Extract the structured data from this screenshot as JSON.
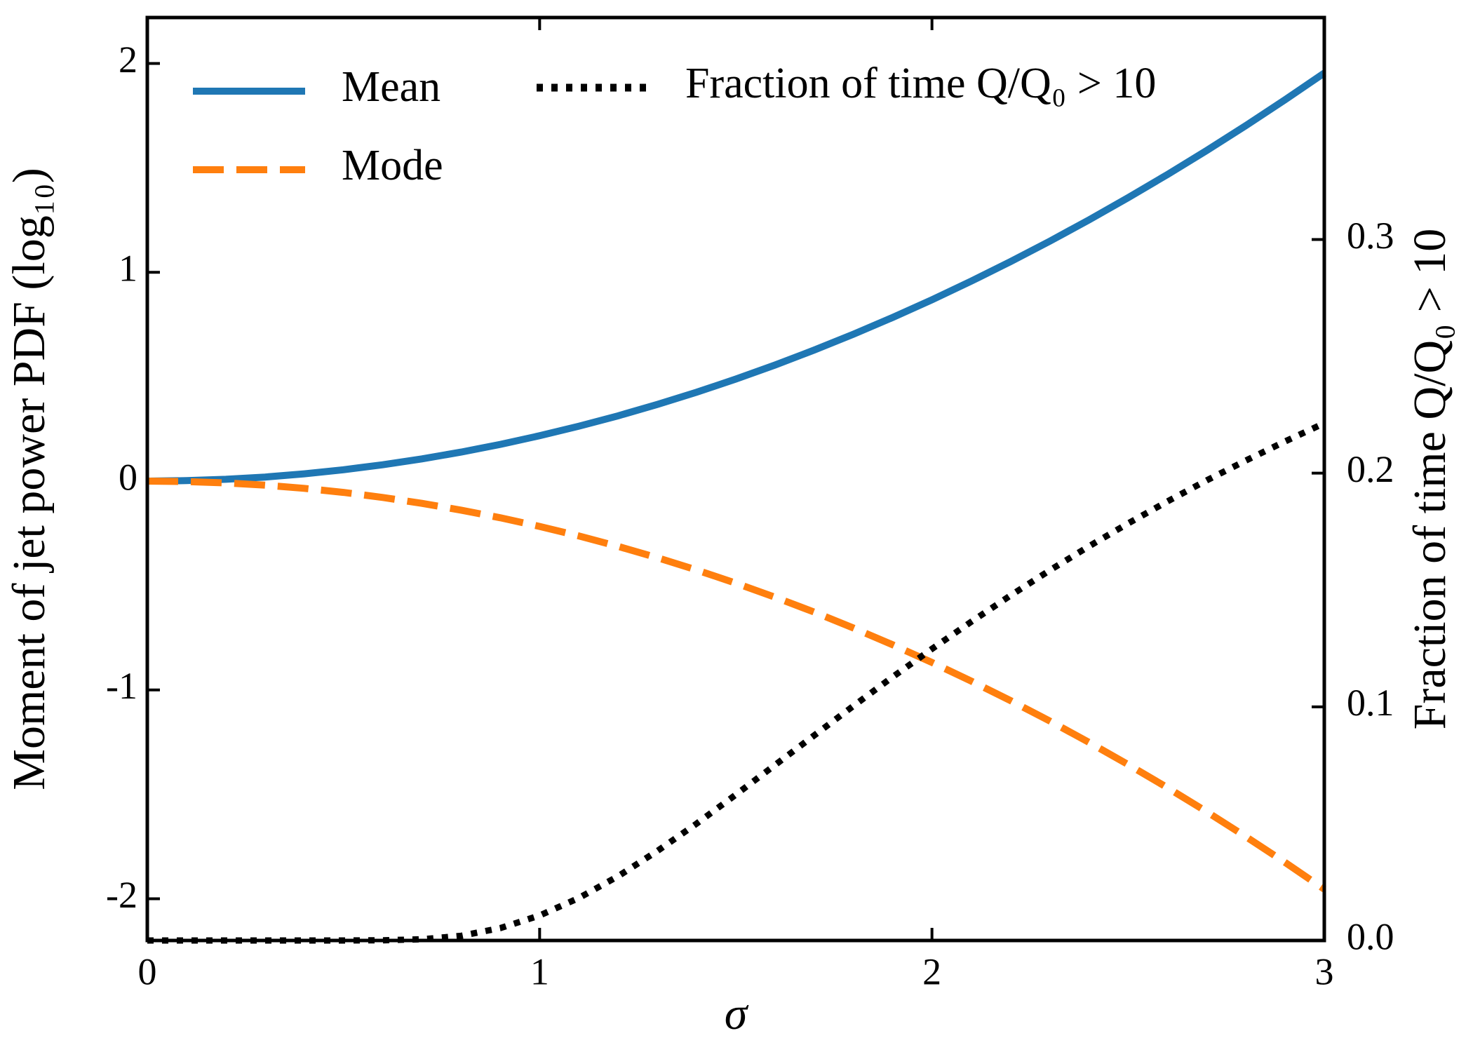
{
  "chart_data": {
    "type": "line",
    "xlabel": "σ",
    "ylabel": "Moment of jet power PDF (log₁₀)",
    "y2label": "Fraction of time Q/Q₀ > 10",
    "x": [
      0,
      0.1,
      0.2,
      0.3,
      0.4,
      0.5,
      0.6,
      0.7,
      0.8,
      0.9,
      1.0,
      1.1,
      1.2,
      1.3,
      1.4,
      1.5,
      1.6,
      1.7,
      1.8,
      1.9,
      2.0,
      2.1,
      2.2,
      2.3,
      2.4,
      2.5,
      2.6,
      2.7,
      2.8,
      2.9,
      3.0
    ],
    "series": [
      {
        "name": "Mean",
        "color": "#1f77b4",
        "style": "solid",
        "values": [
          0,
          0.0022,
          0.0087,
          0.0195,
          0.0347,
          0.0543,
          0.0782,
          0.1064,
          0.139,
          0.1759,
          0.2171,
          0.2628,
          0.3127,
          0.367,
          0.4256,
          0.4886,
          0.5559,
          0.6276,
          0.7036,
          0.7839,
          0.8686,
          0.9576,
          1.051,
          1.1487,
          1.2508,
          1.3572,
          1.468,
          1.583,
          1.7025,
          1.8263,
          1.9544
        ]
      },
      {
        "name": "Mode",
        "color": "#ff7f0e",
        "style": "dashed",
        "values": [
          0,
          -0.0022,
          -0.0087,
          -0.0195,
          -0.0347,
          -0.0543,
          -0.0782,
          -0.1064,
          -0.139,
          -0.1759,
          -0.2171,
          -0.2628,
          -0.3127,
          -0.367,
          -0.4256,
          -0.4886,
          -0.5559,
          -0.6276,
          -0.7036,
          -0.7839,
          -0.8686,
          -0.9576,
          -1.051,
          -1.1487,
          -1.2508,
          -1.3572,
          -1.468,
          -1.583,
          -1.7025,
          -1.8263,
          -1.9544
        ]
      },
      {
        "name": "Fraction of time Q/Q₀ > 10",
        "color": "#000000",
        "style": "dotted",
        "axis": "y2",
        "values": [
          0,
          0,
          0,
          0,
          0,
          0,
          0.0001,
          0.0005,
          0.002,
          0.0053,
          0.0107,
          0.0182,
          0.0275,
          0.0383,
          0.05,
          0.0624,
          0.0751,
          0.0878,
          0.1004,
          0.1128,
          0.1248,
          0.1364,
          0.1476,
          0.1584,
          0.1687,
          0.1785,
          0.1879,
          0.1969,
          0.2054,
          0.2136,
          0.2214
        ]
      }
    ],
    "xlim": [
      0,
      3
    ],
    "xticks": [
      0,
      1,
      2,
      3
    ],
    "ylim": [
      -2.2,
      2.22
    ],
    "yticks": [
      -2,
      -1,
      0,
      1,
      2
    ],
    "y2lim": [
      0,
      0.395
    ],
    "y2ticks": [
      {
        "value": 0,
        "label": "0.0"
      },
      0.1,
      0.2,
      0.3
    ],
    "legend": "upper left",
    "grid": false
  }
}
